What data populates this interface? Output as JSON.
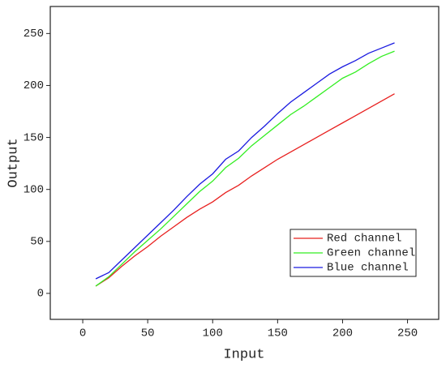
{
  "chart_data": {
    "type": "line",
    "x_label": "Input",
    "y_label": "Output",
    "x": [
      10,
      20,
      30,
      40,
      50,
      60,
      70,
      80,
      90,
      100,
      110,
      120,
      130,
      140,
      150,
      160,
      170,
      180,
      190,
      200,
      210,
      220,
      230,
      240
    ],
    "series": [
      {
        "name": "Red channel",
        "color": "#e8201f",
        "values": [
          7,
          15,
          26,
          36,
          45,
          55,
          64,
          73,
          81,
          88,
          97,
          104,
          113,
          121,
          129,
          136,
          143,
          150,
          157,
          164,
          171,
          178,
          185,
          192
        ]
      },
      {
        "name": "Green channel",
        "color": "#33ee22",
        "values": [
          7,
          16,
          28,
          40,
          51,
          62,
          74,
          86,
          98,
          108,
          121,
          130,
          142,
          152,
          162,
          172,
          180,
          189,
          198,
          207,
          213,
          221,
          228,
          233
        ]
      },
      {
        "name": "Blue channel",
        "color": "#1a1ae0",
        "values": [
          14,
          20,
          32,
          44,
          56,
          68,
          80,
          93,
          105,
          115,
          129,
          137,
          150,
          161,
          173,
          184,
          193,
          202,
          211,
          218,
          224,
          231,
          236,
          241
        ]
      }
    ],
    "xlim": [
      -25,
      274
    ],
    "xticks": [
      0,
      50,
      100,
      150,
      200,
      250
    ],
    "ylim": [
      -25,
      276
    ],
    "yticks": [
      0,
      50,
      100,
      150,
      200,
      250
    ],
    "legend": "lower-right"
  }
}
